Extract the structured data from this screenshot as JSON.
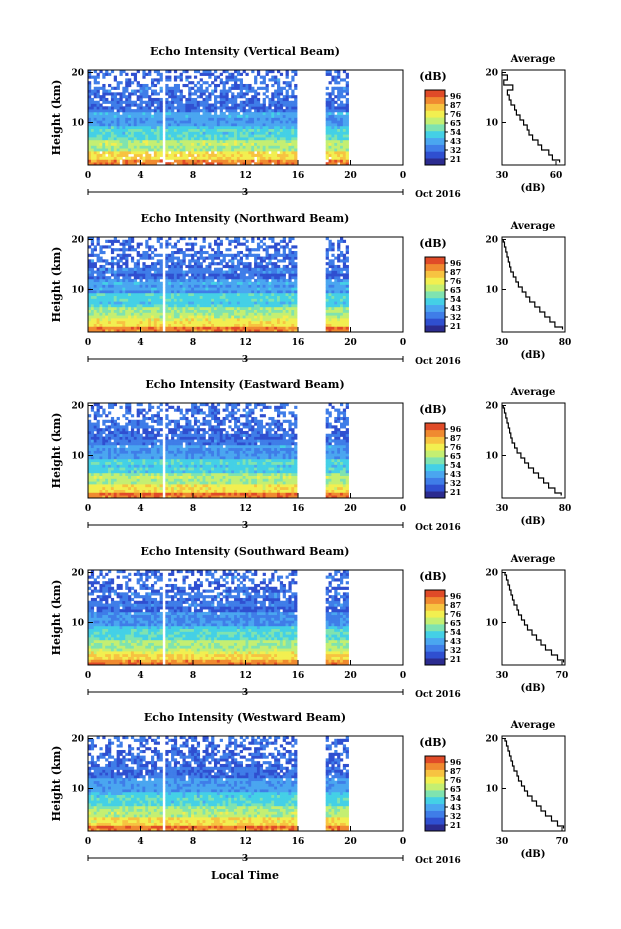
{
  "figure": {
    "xlabel": "Local Time",
    "colors": [
      "#2b2b8f",
      "#2f4fd0",
      "#3f7de8",
      "#4aa6f0",
      "#44d0e6",
      "#7fe3b0",
      "#c4ef72",
      "#f2ef50",
      "#f7c341",
      "#f08a30",
      "#e04b28"
    ]
  },
  "chart_data": [
    {
      "type": "heatmap",
      "title": "Echo Intensity (Vertical Beam)",
      "ylabel": "Height (km)",
      "x_ticks": [
        "0",
        "4",
        "8",
        "12",
        "16",
        "20",
        "0"
      ],
      "y_ticks": [
        "20",
        "10"
      ],
      "xlim": [
        0,
        24
      ],
      "ylim": [
        1.5,
        20.5
      ],
      "day_label": "3",
      "month_label": "Oct 2016",
      "data_gaps": [
        [
          5.7,
          5.85
        ],
        [
          16.0,
          18.0
        ],
        [
          20.0,
          24.0
        ]
      ],
      "colorbar": {
        "unit": "(dB)",
        "ticks": [
          "96",
          "87",
          "76",
          "65",
          "54",
          "43",
          "32",
          "21"
        ],
        "range": [
          21,
          96
        ]
      },
      "profile": {
        "title": "Average",
        "xlabel": "(dB)",
        "x_ticks": [
          "30",
          "60"
        ],
        "xlim": [
          30,
          65
        ],
        "y_ticks": [
          "20",
          "10"
        ],
        "height": [
          2,
          3,
          4,
          5,
          6,
          7,
          8,
          9,
          10,
          11,
          12,
          13,
          14,
          15,
          16,
          17,
          18,
          19,
          20
        ],
        "values": [
          62,
          58,
          56,
          52,
          50,
          47,
          45,
          44,
          42,
          40,
          38,
          37,
          35,
          34,
          33,
          36,
          31,
          33,
          30
        ]
      }
    },
    {
      "type": "heatmap",
      "title": "Echo Intensity (Northward Beam)",
      "ylabel": "Height (km)",
      "x_ticks": [
        "0",
        "4",
        "8",
        "12",
        "16",
        "20",
        "0"
      ],
      "y_ticks": [
        "20",
        "10"
      ],
      "xlim": [
        0,
        24
      ],
      "ylim": [
        1.5,
        20.5
      ],
      "day_label": "3",
      "month_label": "Oct 2016",
      "data_gaps": [
        [
          5.7,
          5.85
        ],
        [
          16.0,
          18.0
        ],
        [
          20.0,
          24.0
        ]
      ],
      "colorbar": {
        "unit": "(dB)",
        "ticks": [
          "96",
          "87",
          "76",
          "65",
          "54",
          "43",
          "32",
          "21"
        ],
        "range": [
          21,
          96
        ]
      },
      "profile": {
        "title": "Average",
        "xlabel": "(dB)",
        "x_ticks": [
          "30",
          "80"
        ],
        "xlim": [
          30,
          80
        ],
        "y_ticks": [
          "20",
          "10"
        ],
        "height": [
          2,
          3,
          4,
          5,
          6,
          7,
          8,
          9,
          10,
          11,
          12,
          13,
          14,
          15,
          16,
          17,
          18,
          19,
          20
        ],
        "values": [
          78,
          72,
          68,
          64,
          60,
          56,
          52,
          49,
          46,
          43,
          41,
          39,
          37,
          36,
          35,
          34,
          33,
          32,
          31
        ]
      }
    },
    {
      "type": "heatmap",
      "title": "Echo Intensity (Eastward Beam)",
      "ylabel": "Height (km)",
      "x_ticks": [
        "0",
        "4",
        "8",
        "12",
        "16",
        "20",
        "0"
      ],
      "y_ticks": [
        "20",
        "10"
      ],
      "xlim": [
        0,
        24
      ],
      "ylim": [
        1.5,
        20.5
      ],
      "day_label": "3",
      "month_label": "Oct 2016",
      "data_gaps": [
        [
          5.7,
          5.85
        ],
        [
          16.0,
          18.0
        ],
        [
          20.0,
          24.0
        ]
      ],
      "colorbar": {
        "unit": "(dB)",
        "ticks": [
          "96",
          "87",
          "76",
          "65",
          "54",
          "43",
          "32",
          "21"
        ],
        "range": [
          21,
          96
        ]
      },
      "profile": {
        "title": "Average",
        "xlabel": "(dB)",
        "x_ticks": [
          "30",
          "80"
        ],
        "xlim": [
          30,
          80
        ],
        "y_ticks": [
          "20",
          "10"
        ],
        "height": [
          2,
          3,
          4,
          5,
          6,
          7,
          8,
          9,
          10,
          11,
          12,
          13,
          14,
          15,
          16,
          17,
          18,
          19,
          20
        ],
        "values": [
          77,
          72,
          67,
          63,
          59,
          55,
          51,
          48,
          45,
          42,
          40,
          38,
          37,
          36,
          35,
          34,
          33,
          32,
          31
        ]
      }
    },
    {
      "type": "heatmap",
      "title": "Echo Intensity (Southward Beam)",
      "ylabel": "Height (km)",
      "x_ticks": [
        "0",
        "4",
        "8",
        "12",
        "16",
        "20",
        "0"
      ],
      "y_ticks": [
        "20",
        "10"
      ],
      "xlim": [
        0,
        24
      ],
      "ylim": [
        1.5,
        20.5
      ],
      "day_label": "3",
      "month_label": "Oct 2016",
      "data_gaps": [
        [
          5.7,
          5.85
        ],
        [
          16.0,
          18.0
        ],
        [
          20.0,
          24.0
        ]
      ],
      "colorbar": {
        "unit": "(dB)",
        "ticks": [
          "96",
          "87",
          "76",
          "65",
          "54",
          "43",
          "32",
          "21"
        ],
        "range": [
          21,
          96
        ]
      },
      "profile": {
        "title": "Average",
        "xlabel": "(dB)",
        "x_ticks": [
          "30",
          "70"
        ],
        "xlim": [
          30,
          72
        ],
        "y_ticks": [
          "20",
          "10"
        ],
        "height": [
          2,
          3,
          4,
          5,
          6,
          7,
          8,
          9,
          10,
          11,
          12,
          13,
          14,
          15,
          16,
          17,
          18,
          19,
          20
        ],
        "values": [
          71,
          67,
          63,
          59,
          56,
          53,
          50,
          47,
          45,
          43,
          41,
          40,
          38,
          37,
          36,
          35,
          34,
          33,
          32
        ]
      }
    },
    {
      "type": "heatmap",
      "title": "Echo Intensity (Westward Beam)",
      "ylabel": "Height (km)",
      "x_ticks": [
        "0",
        "4",
        "8",
        "12",
        "16",
        "20",
        "0"
      ],
      "y_ticks": [
        "20",
        "10"
      ],
      "xlim": [
        0,
        24
      ],
      "ylim": [
        1.5,
        20.5
      ],
      "day_label": "3",
      "month_label": "Oct 2016",
      "data_gaps": [
        [
          5.7,
          5.85
        ],
        [
          16.0,
          18.0
        ],
        [
          20.0,
          24.0
        ]
      ],
      "colorbar": {
        "unit": "(dB)",
        "ticks": [
          "96",
          "87",
          "76",
          "65",
          "54",
          "43",
          "32",
          "21"
        ],
        "range": [
          21,
          96
        ]
      },
      "profile": {
        "title": "Average",
        "xlabel": "(dB)",
        "x_ticks": [
          "30",
          "70"
        ],
        "xlim": [
          30,
          72
        ],
        "y_ticks": [
          "20",
          "10"
        ],
        "height": [
          2,
          3,
          4,
          5,
          6,
          7,
          8,
          9,
          10,
          11,
          12,
          13,
          14,
          15,
          16,
          17,
          18,
          19,
          20
        ],
        "values": [
          71,
          67,
          63,
          59,
          56,
          53,
          50,
          47,
          45,
          43,
          41,
          40,
          38,
          37,
          36,
          35,
          34,
          33,
          32
        ]
      }
    }
  ]
}
